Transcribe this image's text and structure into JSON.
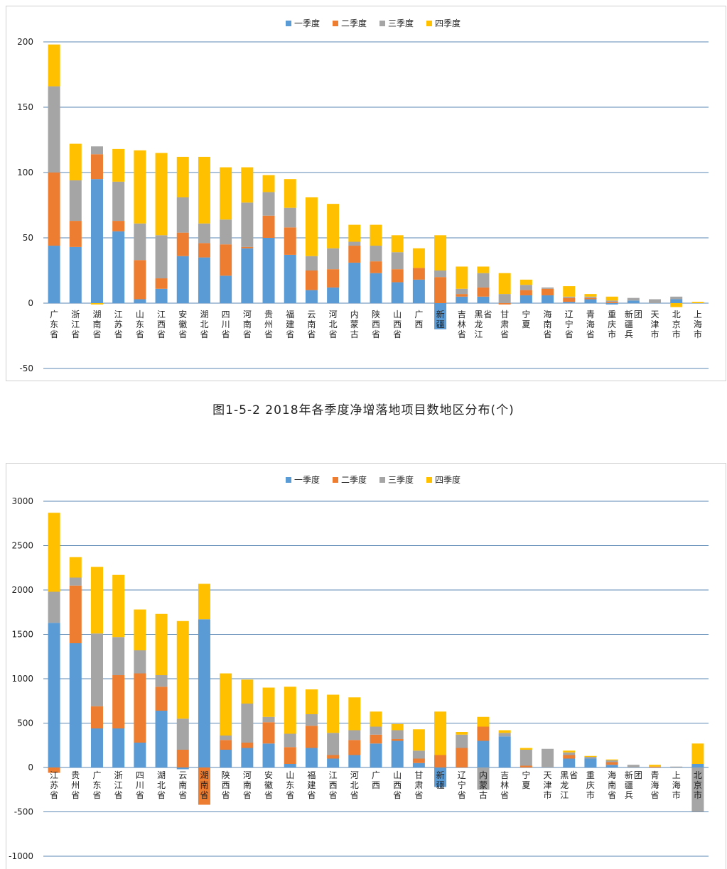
{
  "caption": "图1-5-2 2018年各季度净增落地项目数地区分布(个)",
  "colors": {
    "q1": "#5b9bd5",
    "q2": "#ed7d31",
    "q3": "#a5a5a5",
    "q4": "#ffc000",
    "grid": "#5b87b5"
  },
  "chart_data": [
    {
      "type": "bar",
      "stacked": true,
      "title": "",
      "legend": [
        "一季度",
        "二季度",
        "三季度",
        "四季度"
      ],
      "legend_position": "top",
      "ylim": [
        -50,
        200
      ],
      "yticks": [
        -50,
        0,
        50,
        100,
        150,
        200
      ],
      "categories": [
        "广东省",
        "浙江省",
        "湖南省",
        "江苏省",
        "山东省",
        "江西省",
        "安徽省",
        "湖北省",
        "四川省",
        "河南省",
        "贵州省",
        "福建省",
        "云南省",
        "河北省",
        "内蒙古",
        "陕西省",
        "山西省",
        "广西",
        "新疆",
        "吉林省",
        "黑龙江省",
        "甘肃省",
        "宁夏",
        "海南省",
        "辽宁省",
        "青海省",
        "重庆市",
        "新疆兵团",
        "天津市",
        "北京市",
        "上海市"
      ],
      "series": [
        {
          "name": "一季度",
          "values": [
            44,
            43,
            95,
            55,
            3,
            11,
            36,
            35,
            21,
            42,
            50,
            37,
            10,
            12,
            31,
            23,
            16,
            18,
            -20,
            5,
            5,
            0,
            6,
            6,
            1,
            3,
            -1,
            2,
            0,
            3,
            0
          ]
        },
        {
          "name": "二季度",
          "values": [
            56,
            20,
            19,
            8,
            30,
            8,
            18,
            11,
            24,
            1,
            17,
            21,
            15,
            14,
            13,
            9,
            10,
            9,
            20,
            2,
            7,
            -1,
            4,
            5,
            3,
            1,
            1,
            0,
            0,
            0,
            0
          ]
        },
        {
          "name": "三季度",
          "values": [
            66,
            31,
            6,
            30,
            28,
            33,
            27,
            15,
            19,
            34,
            18,
            15,
            11,
            16,
            3,
            12,
            13,
            0,
            5,
            4,
            11,
            7,
            4,
            1,
            1,
            1,
            1,
            2,
            3,
            2,
            0
          ]
        },
        {
          "name": "四季度",
          "values": [
            32,
            28,
            -1,
            25,
            56,
            63,
            31,
            51,
            40,
            27,
            13,
            22,
            45,
            34,
            13,
            16,
            13,
            15,
            27,
            17,
            5,
            16,
            4,
            0,
            8,
            2,
            3,
            0,
            0,
            -3,
            1
          ]
        }
      ]
    },
    {
      "type": "bar",
      "stacked": true,
      "title": "",
      "legend": [
        "一季度",
        "二季度",
        "三季度",
        "四季度"
      ],
      "legend_position": "top",
      "ylim": [
        -1000,
        3000
      ],
      "yticks": [
        -1000,
        -500,
        0,
        500,
        1000,
        1500,
        2000,
        2500,
        3000
      ],
      "categories": [
        "江苏省",
        "贵州省",
        "广东省",
        "浙江省",
        "四川省",
        "湖北省",
        "云南省",
        "湖南省",
        "陕西省",
        "河南省",
        "安徽省",
        "山东省",
        "福建省",
        "江西省",
        "河北省",
        "广西",
        "山西省",
        "甘肃省",
        "新疆",
        "辽宁省",
        "内蒙古",
        "吉林省",
        "宁夏",
        "天津市",
        "黑龙江省",
        "重庆市",
        "海南省",
        "新疆兵团",
        "青海省",
        "上海市",
        "北京市"
      ],
      "series": [
        {
          "name": "一季度",
          "values": [
            1630,
            1400,
            440,
            440,
            280,
            640,
            -20,
            1670,
            200,
            220,
            270,
            40,
            220,
            100,
            140,
            270,
            300,
            50,
            -220,
            0,
            300,
            350,
            0,
            0,
            100,
            100,
            30,
            0,
            0,
            0,
            40
          ]
        },
        {
          "name": "二季度",
          "values": [
            -60,
            650,
            250,
            600,
            780,
            270,
            200,
            -420,
            110,
            60,
            240,
            190,
            250,
            40,
            170,
            100,
            20,
            50,
            140,
            220,
            160,
            0,
            20,
            0,
            40,
            0,
            30,
            0,
            10,
            0,
            0
          ]
        },
        {
          "name": "三季度",
          "values": [
            350,
            90,
            820,
            430,
            260,
            130,
            350,
            0,
            50,
            440,
            60,
            150,
            130,
            250,
            110,
            90,
            100,
            90,
            0,
            150,
            -250,
            40,
            180,
            210,
            30,
            20,
            20,
            30,
            0,
            10,
            -500
          ]
        },
        {
          "name": "四季度",
          "values": [
            890,
            230,
            750,
            700,
            460,
            690,
            1100,
            400,
            700,
            270,
            330,
            530,
            280,
            430,
            370,
            170,
            70,
            240,
            490,
            30,
            110,
            30,
            20,
            0,
            20,
            10,
            10,
            0,
            20,
            0,
            230
          ]
        }
      ]
    }
  ]
}
